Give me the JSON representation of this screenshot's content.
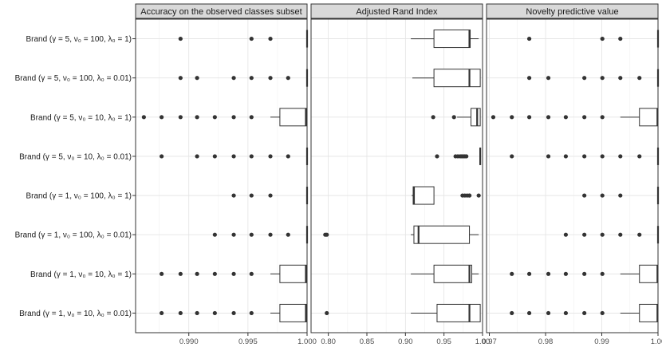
{
  "chart_data": {
    "type": "boxplot",
    "orientation": "horizontal",
    "grid": true,
    "row_labels": [
      "Brand (γ = 5,  ν₀ = 100,  λ₀ = 1)",
      "Brand (γ = 5,  ν₀ = 100,  λ₀ = 0.01)",
      "Brand (γ = 5,  ν₀ = 10,  λ₀ = 1)",
      "Brand (γ = 5,  ν₀ = 10,  λ₀ = 0.01)",
      "Brand (γ = 1,  ν₀ = 100,  λ₀ = 1)",
      "Brand (γ = 1,  ν₀ = 100,  λ₀ = 0.01)",
      "Brand (γ = 1,  ν₀ = 10,  λ₀ = 1)",
      "Brand (γ = 1,  ν₀ = 10,  λ₀ = 0.01)"
    ],
    "panels": [
      {
        "title": "Accuracy on the observed classes subset",
        "xlim": [
          0.9855,
          1.0
        ],
        "ticks": [
          0.99,
          0.995,
          1.0
        ],
        "tick_labels": [
          "0.990",
          "0.995",
          "1.000"
        ],
        "boxes": [
          {
            "q1": 1.0,
            "median": 1.0,
            "q3": 1.0,
            "wmin": 1.0,
            "wmax": 1.0,
            "outliers": [
              0.9893,
              0.9953,
              0.9969
            ]
          },
          {
            "q1": 1.0,
            "median": 1.0,
            "q3": 1.0,
            "wmin": 1.0,
            "wmax": 1.0,
            "outliers": [
              0.9893,
              0.9907,
              0.9938,
              0.9953,
              0.9969,
              0.9984
            ]
          },
          {
            "q1": 0.9977,
            "median": 0.9999,
            "q3": 1.0,
            "wmin": 0.9969,
            "wmax": 1.0,
            "outliers": [
              0.9862,
              0.9877,
              0.9893,
              0.9907,
              0.9922,
              0.9938,
              0.9953
            ]
          },
          {
            "q1": 1.0,
            "median": 1.0,
            "q3": 1.0,
            "wmin": 1.0,
            "wmax": 1.0,
            "outliers": [
              0.9877,
              0.9907,
              0.9922,
              0.9938,
              0.9953,
              0.9969,
              0.9984
            ]
          },
          {
            "q1": 1.0,
            "median": 1.0,
            "q3": 1.0,
            "wmin": 1.0,
            "wmax": 1.0,
            "outliers": [
              0.9938,
              0.9953,
              0.9969
            ]
          },
          {
            "q1": 1.0,
            "median": 1.0,
            "q3": 1.0,
            "wmin": 1.0,
            "wmax": 1.0,
            "outliers": [
              0.9922,
              0.9938,
              0.9953,
              0.9969,
              0.9984
            ]
          },
          {
            "q1": 0.9977,
            "median": 0.9999,
            "q3": 1.0,
            "wmin": 0.9969,
            "wmax": 1.0,
            "outliers": [
              0.9877,
              0.9893,
              0.9907,
              0.9922,
              0.9938,
              0.9953
            ]
          },
          {
            "q1": 0.9977,
            "median": 0.9999,
            "q3": 1.0,
            "wmin": 0.9969,
            "wmax": 1.0,
            "outliers": [
              0.9877,
              0.9893,
              0.9907,
              0.9922,
              0.9938,
              0.9953
            ]
          }
        ]
      },
      {
        "title": "Adjusted Rand Index",
        "xlim": [
          0.7776,
          1.0
        ],
        "ticks": [
          0.8,
          0.85,
          0.9,
          0.95,
          1.0
        ],
        "tick_labels": [
          "0.80",
          "0.85",
          "0.90",
          "0.95",
          "1.00"
        ],
        "boxes": [
          {
            "q1": 0.937,
            "median": 0.983,
            "q3": 0.984,
            "wmin": 0.907,
            "wmax": 0.995,
            "outliers": []
          },
          {
            "q1": 0.937,
            "median": 0.983,
            "q3": 0.997,
            "wmin": 0.909,
            "wmax": 0.997,
            "outliers": []
          },
          {
            "q1": 0.985,
            "median": 0.993,
            "q3": 0.997,
            "wmin": 0.967,
            "wmax": 0.997,
            "outliers": [
              0.936,
              0.963
            ]
          },
          {
            "q1": 0.997,
            "median": 0.997,
            "q3": 0.997,
            "wmin": 0.997,
            "wmax": 0.997,
            "outliers": [
              0.941,
              0.965,
              0.968,
              0.971,
              0.973,
              0.975,
              0.977,
              0.979
            ]
          },
          {
            "q1": 0.91,
            "median": 0.911,
            "q3": 0.937,
            "wmin": 0.908,
            "wmax": 0.937,
            "outliers": [
              0.974,
              0.977,
              0.98,
              0.983,
              0.983,
              0.995
            ]
          },
          {
            "q1": 0.911,
            "median": 0.917,
            "q3": 0.983,
            "wmin": 0.907,
            "wmax": 0.995,
            "outliers": [
              0.796,
              0.798
            ]
          },
          {
            "q1": 0.937,
            "median": 0.983,
            "q3": 0.986,
            "wmin": 0.907,
            "wmax": 0.995,
            "outliers": []
          },
          {
            "q1": 0.941,
            "median": 0.983,
            "q3": 0.997,
            "wmin": 0.907,
            "wmax": 0.997,
            "outliers": [
              0.798
            ]
          }
        ]
      },
      {
        "title": "Novelty predictive value",
        "xlim": [
          0.9695,
          1.0
        ],
        "ticks": [
          0.97,
          0.98,
          0.99,
          1.0
        ],
        "tick_labels": [
          "0.97",
          "0.98",
          "0.99",
          "1.00"
        ],
        "boxes": [
          {
            "q1": 1.0,
            "median": 1.0,
            "q3": 1.0,
            "wmin": 1.0,
            "wmax": 1.0,
            "outliers": [
              0.9771,
              0.9901,
              0.9933
            ]
          },
          {
            "q1": 1.0,
            "median": 1.0,
            "q3": 1.0,
            "wmin": 1.0,
            "wmax": 1.0,
            "outliers": [
              0.9771,
              0.9805,
              0.9869,
              0.9901,
              0.9933,
              0.9967
            ]
          },
          {
            "q1": 0.9967,
            "median": 0.9999,
            "q3": 1.0,
            "wmin": 0.9933,
            "wmax": 1.0,
            "outliers": [
              0.9707,
              0.974,
              0.9771,
              0.9805,
              0.9836,
              0.9869,
              0.9901
            ]
          },
          {
            "q1": 1.0,
            "median": 1.0,
            "q3": 1.0,
            "wmin": 1.0,
            "wmax": 1.0,
            "outliers": [
              0.974,
              0.9805,
              0.9836,
              0.9869,
              0.9901,
              0.9933,
              0.9967
            ]
          },
          {
            "q1": 1.0,
            "median": 1.0,
            "q3": 1.0,
            "wmin": 1.0,
            "wmax": 1.0,
            "outliers": [
              0.9869,
              0.9901,
              0.9933
            ]
          },
          {
            "q1": 1.0,
            "median": 1.0,
            "q3": 1.0,
            "wmin": 1.0,
            "wmax": 1.0,
            "outliers": [
              0.9836,
              0.9869,
              0.9901,
              0.9933,
              0.9967
            ]
          },
          {
            "q1": 0.9967,
            "median": 0.9999,
            "q3": 1.0,
            "wmin": 0.9933,
            "wmax": 1.0,
            "outliers": [
              0.974,
              0.9771,
              0.9805,
              0.9836,
              0.9869,
              0.9901
            ]
          },
          {
            "q1": 0.9967,
            "median": 0.9999,
            "q3": 1.0,
            "wmin": 0.9933,
            "wmax": 1.0,
            "outliers": [
              0.974,
              0.9771,
              0.9805,
              0.9836,
              0.9869,
              0.9901
            ]
          }
        ]
      }
    ]
  }
}
